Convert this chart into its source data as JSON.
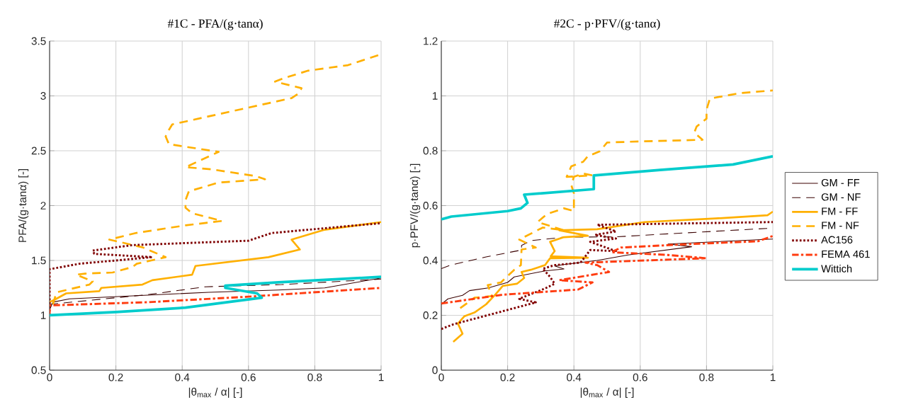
{
  "chart_data": [
    {
      "type": "line",
      "title": "#1C - PFA/(g·tanα)",
      "xlabel": "|θ$_{max}$ / α| [-]",
      "ylabel": "PFA/(g·tanα) [-]",
      "xlim": [
        0,
        1
      ],
      "ylim": [
        0.5,
        3.5
      ],
      "xticks": [
        0,
        0.2,
        0.4,
        0.6,
        0.8,
        1
      ],
      "yticks": [
        0.5,
        1,
        1.5,
        2,
        2.5,
        3,
        3.5
      ],
      "grid": true,
      "series": [
        {
          "color": "#3a0000",
          "line_style": "solid",
          "x": [
            0,
            0.01,
            0.06,
            0.48,
            0.69,
            0.83,
            1.0
          ],
          "values": [
            1.05,
            1.12,
            1.15,
            1.21,
            1.23,
            1.25,
            1.34
          ]
        },
        {
          "color": "#3a0000",
          "line_style": "dashed",
          "x": [
            0,
            0.3,
            0.47,
            0.7,
            1.0
          ],
          "values": [
            1.1,
            1.19,
            1.26,
            1.28,
            1.33
          ]
        },
        {
          "color": "#ffb000",
          "line_style": "solid",
          "x": [
            0,
            0.02,
            0.05,
            0.15,
            0.156,
            0.28,
            0.31,
            0.43,
            0.44,
            0.66,
            0.755,
            0.73,
            0.83,
            1.0
          ],
          "values": [
            1.12,
            1.15,
            1.2,
            1.22,
            1.25,
            1.28,
            1.32,
            1.37,
            1.45,
            1.53,
            1.6,
            1.69,
            1.78,
            1.85
          ]
        },
        {
          "color": "#ffb000",
          "line_style": "dashed",
          "x": [
            0.01,
            0.021,
            0.12,
            0.13,
            0.08,
            0.107,
            0.19,
            0.25,
            0.263,
            0.35,
            0.28,
            0.18,
            0.26,
            0.41,
            0.52,
            0.43,
            0.41,
            0.41,
            0.42,
            0.51,
            0.65,
            0.62,
            0.49,
            0.41,
            0.51,
            0.36,
            0.35,
            0.36,
            0.37,
            0.49,
            0.73,
            0.75,
            0.76,
            0.68,
            0.705,
            0.78,
            0.9,
            1.0
          ],
          "values": [
            1.1,
            1.21,
            1.28,
            1.31,
            1.37,
            1.38,
            1.39,
            1.44,
            1.47,
            1.53,
            1.62,
            1.69,
            1.75,
            1.82,
            1.86,
            1.93,
            1.98,
            2.05,
            2.13,
            2.21,
            2.24,
            2.27,
            2.33,
            2.35,
            2.49,
            2.56,
            2.63,
            2.69,
            2.74,
            2.82,
            2.98,
            3.02,
            3.07,
            3.13,
            3.16,
            3.23,
            3.28,
            3.38
          ]
        },
        {
          "color": "#800000",
          "line_style": "dotted",
          "x": [
            0,
            0,
            0.09,
            0.2,
            0.31,
            0.135,
            0.13,
            0.25,
            0.6,
            0.67,
            1.0
          ],
          "values": [
            1.0,
            1.42,
            1.47,
            1.5,
            1.53,
            1.56,
            1.59,
            1.64,
            1.68,
            1.75,
            1.84
          ]
        },
        {
          "color": "#ff3c10",
          "line_style": "dashdot",
          "x": [
            0,
            0,
            0.3,
            0.6,
            1.0
          ],
          "values": [
            1.0,
            1.09,
            1.12,
            1.17,
            1.25
          ]
        },
        {
          "color": "#00cccc",
          "line_style": "solid",
          "x": [
            0,
            0.2,
            0.41,
            0.64,
            0.626,
            0.53,
            0.53,
            0.69,
            1.0
          ],
          "values": [
            1.0,
            1.03,
            1.07,
            1.16,
            1.2,
            1.25,
            1.27,
            1.3,
            1.35
          ]
        }
      ]
    },
    {
      "type": "line",
      "title": "#2C - p·PFV/(g·tanα)",
      "xlabel": "|θ$_{max}$ / α| [-]",
      "ylabel": "p·PFV/(g·tanα) [-]",
      "xlim": [
        0,
        1
      ],
      "ylim": [
        0,
        1.2
      ],
      "xticks": [
        0,
        0.2,
        0.4,
        0.6,
        0.8,
        1
      ],
      "yticks": [
        0,
        0.2,
        0.4,
        0.6,
        0.8,
        1,
        1.2
      ],
      "grid": true,
      "legend": "right",
      "series": [
        {
          "name": "GM - FF",
          "color": "#3a0000",
          "line_style": "solid",
          "x": [
            0,
            0.007,
            0.02,
            0.064,
            0.085,
            0.142,
            0.2,
            0.22,
            0.313,
            0.37,
            0.342,
            0.37,
            0.47,
            0.563,
            0.755,
            0.684,
            1.0
          ],
          "values": [
            0.24,
            0.247,
            0.26,
            0.273,
            0.29,
            0.3,
            0.32,
            0.34,
            0.362,
            0.369,
            0.38,
            0.385,
            0.4,
            0.42,
            0.45,
            0.46,
            0.478
          ]
        },
        {
          "name": "GM - NF",
          "color": "#3a0000",
          "line_style": "dashed",
          "x": [
            0,
            0.028,
            0.135,
            0.242,
            0.242,
            0.27,
            0.37,
            0.527,
            0.684,
            1.0
          ],
          "values": [
            0.37,
            0.383,
            0.413,
            0.438,
            0.455,
            0.472,
            0.485,
            0.486,
            0.497,
            0.518
          ]
        },
        {
          "name": "FM - FF",
          "color": "#ffb000",
          "line_style": "solid",
          "x": [
            0.036,
            0.064,
            0.05,
            0.07,
            0.1,
            0.135,
            0.164,
            0.185,
            0.228,
            0.25,
            0.242,
            0.27,
            0.313,
            0.328,
            0.442,
            0.33,
            0.342,
            0.328,
            0.37,
            0.442,
            0.356,
            0.47,
            0.613,
            0.827,
            0.984,
            1.0
          ],
          "values": [
            0.103,
            0.133,
            0.17,
            0.197,
            0.21,
            0.24,
            0.277,
            0.307,
            0.315,
            0.336,
            0.358,
            0.366,
            0.383,
            0.408,
            0.41,
            0.415,
            0.434,
            0.468,
            0.485,
            0.49,
            0.51,
            0.514,
            0.54,
            0.553,
            0.565,
            0.578
          ]
        },
        {
          "name": "FM - NF",
          "color": "#ffb000",
          "line_style": "dashed",
          "x": [
            0.057,
            0.1,
            0.153,
            0.14,
            0.18,
            0.22,
            0.24,
            0.242,
            0.285,
            0.235,
            0.306,
            0.37,
            0.29,
            0.32,
            0.37,
            0.4,
            0.4,
            0.392,
            0.4,
            0.428,
            0.456,
            0.378,
            0.392,
            0.428,
            0.442,
            0.478,
            0.5,
            0.6,
            0.788,
            0.763,
            0.77,
            0.8,
            0.8,
            0.81,
            0.9,
            1.0
          ],
          "values": [
            0.226,
            0.264,
            0.27,
            0.31,
            0.32,
            0.366,
            0.383,
            0.44,
            0.447,
            0.476,
            0.52,
            0.51,
            0.54,
            0.57,
            0.59,
            0.58,
            0.645,
            0.675,
            0.705,
            0.717,
            0.71,
            0.705,
            0.743,
            0.76,
            0.78,
            0.798,
            0.83,
            0.834,
            0.84,
            0.866,
            0.888,
            0.917,
            0.95,
            0.99,
            1.01,
            1.02
          ]
        },
        {
          "name": "AC156",
          "color": "#800000",
          "line_style": "dotted",
          "x": [
            0,
            0.036,
            0.285,
            0.235,
            0.313,
            0.342,
            0.328,
            0.306,
            0.342,
            0.42,
            0.449,
            0.527,
            0.449,
            0.527,
            0.463,
            0.527,
            0.47,
            1.0
          ],
          "values": [
            0.15,
            0.167,
            0.247,
            0.26,
            0.298,
            0.315,
            0.34,
            0.37,
            0.383,
            0.392,
            0.438,
            0.434,
            0.468,
            0.48,
            0.493,
            0.506,
            0.53,
            0.54
          ]
        },
        {
          "name": "FEMA 461",
          "color": "#ff3c10",
          "line_style": "dashdot",
          "x": [
            0,
            0.185,
            0.413,
            0.456,
            0.356,
            0.506,
            0.47,
            0.435,
            0.798,
            0.684,
            0.513,
            0.542,
            0.755,
            0.955,
            1.0
          ],
          "values": [
            0.243,
            0.275,
            0.294,
            0.32,
            0.328,
            0.358,
            0.383,
            0.392,
            0.408,
            0.42,
            0.43,
            0.447,
            0.46,
            0.47,
            0.489
          ]
        },
        {
          "name": "Wittich",
          "color": "#00cccc",
          "line_style": "solid",
          "x": [
            0,
            0.03,
            0.2,
            0.24,
            0.26,
            0.25,
            0.46,
            0.46,
            0.66,
            0.88,
            0.96,
            1.0
          ],
          "values": [
            0.55,
            0.56,
            0.58,
            0.59,
            0.61,
            0.64,
            0.66,
            0.71,
            0.73,
            0.75,
            0.77,
            0.78
          ]
        }
      ]
    }
  ]
}
